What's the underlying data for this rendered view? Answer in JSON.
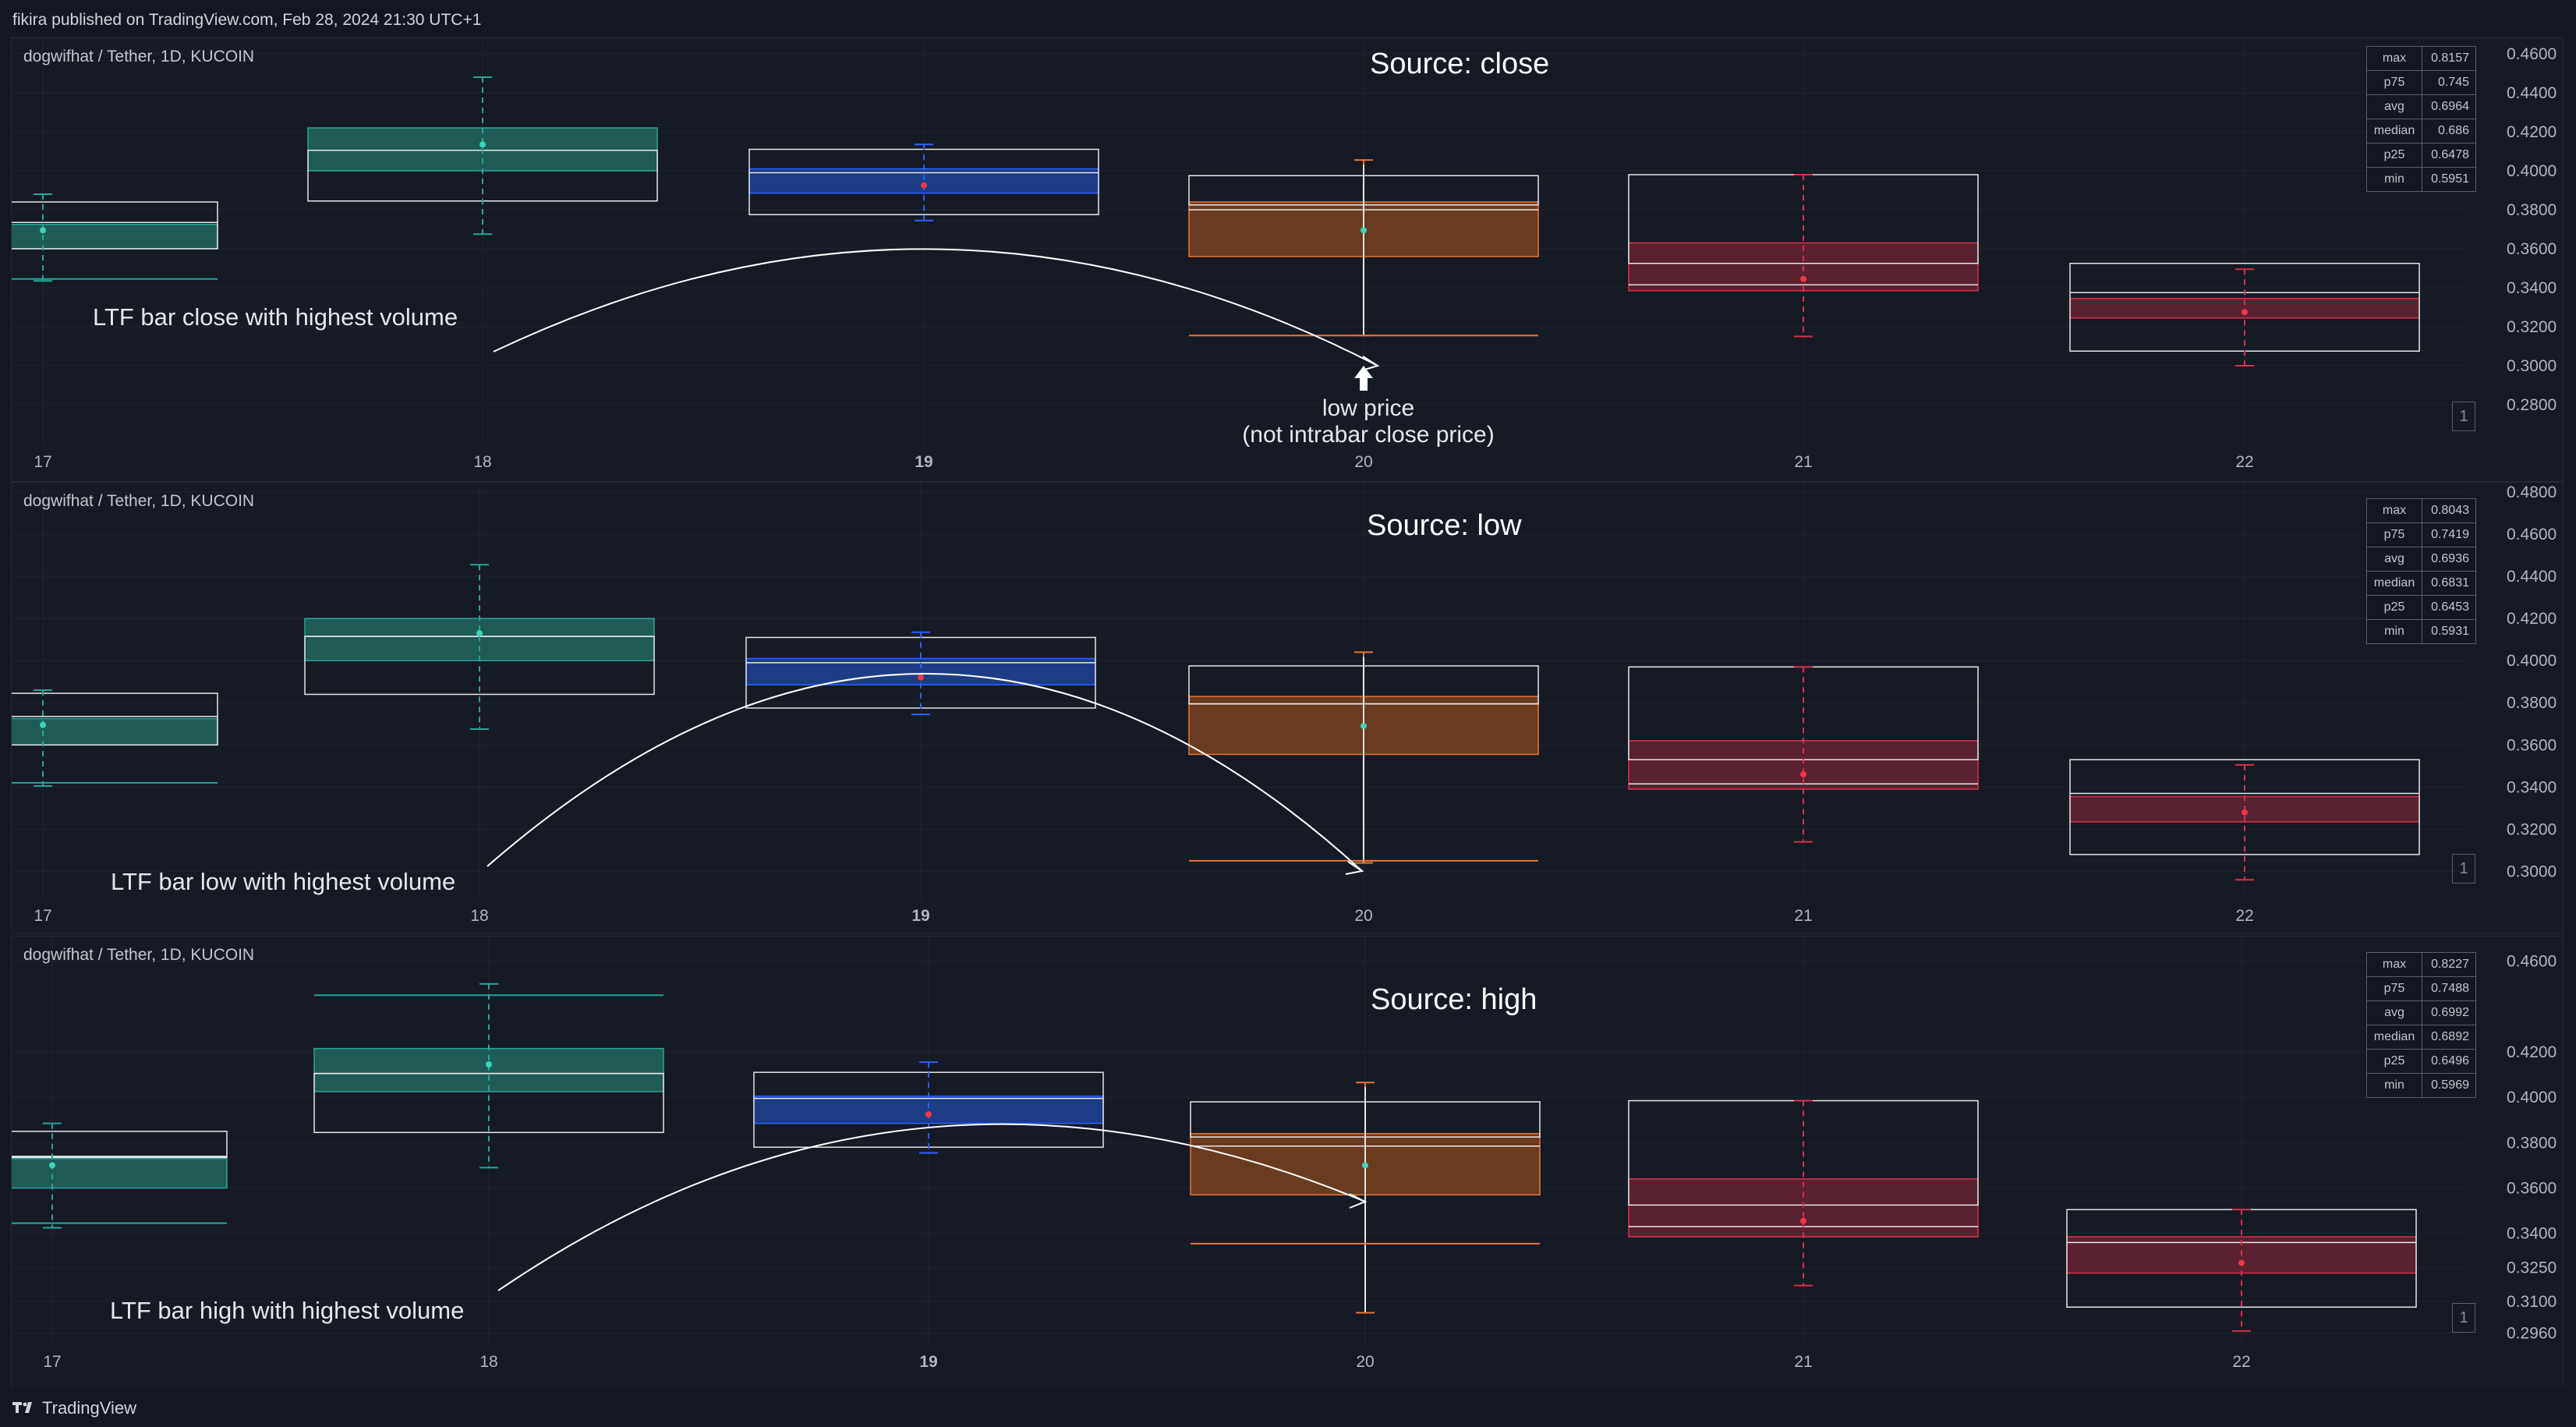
{
  "header": {
    "published": "fikira published on TradingView.com, Feb 28, 2024 21:30 UTC+1"
  },
  "footer": {
    "brand": "TradingView"
  },
  "colors": {
    "background": "#161a25",
    "grid": "#20242f",
    "axis_text": "#b2b5be",
    "green": "#26a69a",
    "green_fill": "#1f5c55",
    "green_marker": "#3ed4ba",
    "blue": "#2962ff",
    "blue_fill": "#1d3c86",
    "orange": "#e8743b",
    "orange_fill": "#6b3b20",
    "red": "#d6324b",
    "red_fill": "#5a2130",
    "red_marker": "#f23645",
    "box_outline": "#e6e6e6"
  },
  "chart_data": [
    {
      "type": "box",
      "title": "Source: close",
      "symbol": "dogwifhat / Tether, 1D, KUCOIN",
      "ylim": [
        0.264,
        0.464
      ],
      "yticks": [
        0.46,
        0.44,
        0.42,
        0.4,
        0.38,
        0.36,
        0.34,
        0.32,
        0.3,
        0.28
      ],
      "categories": [
        "17",
        "18",
        "19",
        "20",
        "21",
        "22"
      ],
      "bold_category": "19",
      "bars": [
        {
          "x": "17",
          "color": "green",
          "wick": [
            0.3435,
            0.388
          ],
          "range": [
            0.36,
            0.384
          ],
          "body": [
            0.36,
            0.3725
          ],
          "median": 0.3735,
          "avg": 0.3695,
          "ltf_line": 0.3445
        },
        {
          "x": "18",
          "color": "green",
          "wick": [
            0.3675,
            0.448
          ],
          "range": [
            0.3845,
            0.4105
          ],
          "body": [
            0.4,
            0.422
          ],
          "median": 0.4105,
          "avg": 0.4135
        },
        {
          "x": "19",
          "color": "blue",
          "wick": [
            0.3745,
            0.4135
          ],
          "range": [
            0.3775,
            0.411
          ],
          "body": [
            0.3885,
            0.401
          ],
          "median": 0.399,
          "avg": 0.3925
        },
        {
          "x": "20",
          "color": "orange",
          "wick": [
            0.3155,
            0.4055
          ],
          "range": [
            0.3825,
            0.3975
          ],
          "body": [
            0.356,
            0.384
          ],
          "median": 0.38,
          "avg": 0.3695,
          "ltf_line": 0.3155
        },
        {
          "x": "21",
          "color": "red",
          "wick": [
            0.315,
            0.398
          ],
          "range": [
            0.3525,
            0.398
          ],
          "body": [
            0.3385,
            0.363
          ],
          "median": 0.3415,
          "avg": 0.3445
        },
        {
          "x": "22",
          "color": "red",
          "wick": [
            0.3,
            0.3495
          ],
          "range": [
            0.3075,
            0.3525
          ],
          "body": [
            0.3245,
            0.3345
          ],
          "median": 0.3375,
          "avg": 0.3275
        }
      ],
      "annotation": "LTF bar close with highest volume",
      "note": [
        "low price",
        "(not intrabar close price)"
      ],
      "stats": [
        [
          "max",
          "0.8157"
        ],
        [
          "p75",
          "0.745"
        ],
        [
          "avg",
          "0.6964"
        ],
        [
          "median",
          "0.686"
        ],
        [
          "p25",
          "0.6478"
        ],
        [
          "min",
          "0.5951"
        ]
      ],
      "badge": "1"
    },
    {
      "type": "box",
      "title": "Source: low",
      "symbol": "dogwifhat / Tether, 1D, KUCOIN",
      "ylim": [
        0.2935,
        0.48
      ],
      "yticks": [
        0.48,
        0.46,
        0.44,
        0.42,
        0.4,
        0.38,
        0.36,
        0.34,
        0.32,
        0.3
      ],
      "categories": [
        "17",
        "18",
        "19",
        "20",
        "21",
        "22"
      ],
      "bold_category": "19",
      "bars": [
        {
          "x": "17",
          "color": "green",
          "wick": [
            0.3405,
            0.386
          ],
          "range": [
            0.36,
            0.3845
          ],
          "body": [
            0.36,
            0.3725
          ],
          "median": 0.3735,
          "avg": 0.3695,
          "ltf_line": 0.342
        },
        {
          "x": "18",
          "color": "green",
          "wick": [
            0.3675,
            0.4455
          ],
          "range": [
            0.384,
            0.4115
          ],
          "body": [
            0.4,
            0.42
          ],
          "median": 0.4115,
          "avg": 0.413
        },
        {
          "x": "19",
          "color": "blue",
          "wick": [
            0.3745,
            0.4135
          ],
          "range": [
            0.3775,
            0.411
          ],
          "body": [
            0.3885,
            0.401
          ],
          "median": 0.399,
          "avg": 0.392
        },
        {
          "x": "20",
          "color": "orange",
          "wick": [
            0.304,
            0.404
          ],
          "range": [
            0.3795,
            0.3975
          ],
          "body": [
            0.3555,
            0.383
          ],
          "median": 0.3795,
          "avg": 0.369,
          "ltf_line": 0.305
        },
        {
          "x": "21",
          "color": "red",
          "wick": [
            0.314,
            0.397
          ],
          "range": [
            0.353,
            0.397
          ],
          "body": [
            0.339,
            0.362
          ],
          "median": 0.3415,
          "avg": 0.346
        },
        {
          "x": "22",
          "color": "red",
          "wick": [
            0.296,
            0.3505
          ],
          "range": [
            0.308,
            0.353
          ],
          "body": [
            0.3235,
            0.3355
          ],
          "median": 0.337,
          "avg": 0.328
        }
      ],
      "annotation": "LTF bar low with highest volume",
      "stats": [
        [
          "max",
          "0.8043"
        ],
        [
          "p75",
          "0.7419"
        ],
        [
          "avg",
          "0.6936"
        ],
        [
          "median",
          "0.6831"
        ],
        [
          "p25",
          "0.6453"
        ],
        [
          "min",
          "0.5931"
        ]
      ],
      "badge": "1"
    },
    {
      "type": "box",
      "title": "Source: high",
      "symbol": "dogwifhat / Tether, 1D, KUCOIN",
      "ylim": [
        0.288,
        0.464
      ],
      "yticks": [
        0.46,
        0.42,
        0.4,
        0.38,
        0.36,
        0.34,
        0.325,
        0.31,
        0.296
      ],
      "categories": [
        "17",
        "18",
        "19",
        "20",
        "21",
        "22"
      ],
      "bold_category": "19",
      "bars": [
        {
          "x": "17",
          "color": "green",
          "wick": [
            0.3425,
            0.3885
          ],
          "range": [
            0.3735,
            0.385
          ],
          "body": [
            0.36,
            0.373
          ],
          "median": 0.374,
          "avg": 0.37,
          "ltf_line": 0.3445
        },
        {
          "x": "18",
          "color": "green",
          "wick": [
            0.369,
            0.45
          ],
          "range": [
            0.3845,
            0.4105
          ],
          "body": [
            0.4025,
            0.4215
          ],
          "median": 0.4105,
          "avg": 0.4145,
          "ltf_line": 0.445
        },
        {
          "x": "19",
          "color": "blue",
          "wick": [
            0.3755,
            0.4155
          ],
          "range": [
            0.378,
            0.411
          ],
          "body": [
            0.3885,
            0.4005
          ],
          "median": 0.3995,
          "avg": 0.3925
        },
        {
          "x": "20",
          "color": "orange",
          "wick": [
            0.305,
            0.4065
          ],
          "range": [
            0.3825,
            0.398
          ],
          "body": [
            0.357,
            0.384
          ],
          "median": 0.3785,
          "avg": 0.37,
          "ltf_line": 0.3355
        },
        {
          "x": "21",
          "color": "red",
          "wick": [
            0.317,
            0.3985
          ],
          "range": [
            0.3525,
            0.3985
          ],
          "body": [
            0.3385,
            0.364
          ],
          "median": 0.343,
          "avg": 0.3455
        },
        {
          "x": "22",
          "color": "red",
          "wick": [
            0.297,
            0.3505
          ],
          "range": [
            0.3075,
            0.3505
          ],
          "body": [
            0.3225,
            0.3385
          ],
          "median": 0.336,
          "avg": 0.327
        }
      ],
      "annotation": "LTF bar high with highest volume",
      "stats": [
        [
          "max",
          "0.8227"
        ],
        [
          "p75",
          "0.7488"
        ],
        [
          "avg",
          "0.6992"
        ],
        [
          "median",
          "0.6892"
        ],
        [
          "p25",
          "0.6496"
        ],
        [
          "min",
          "0.5969"
        ]
      ],
      "badge": "1"
    }
  ]
}
